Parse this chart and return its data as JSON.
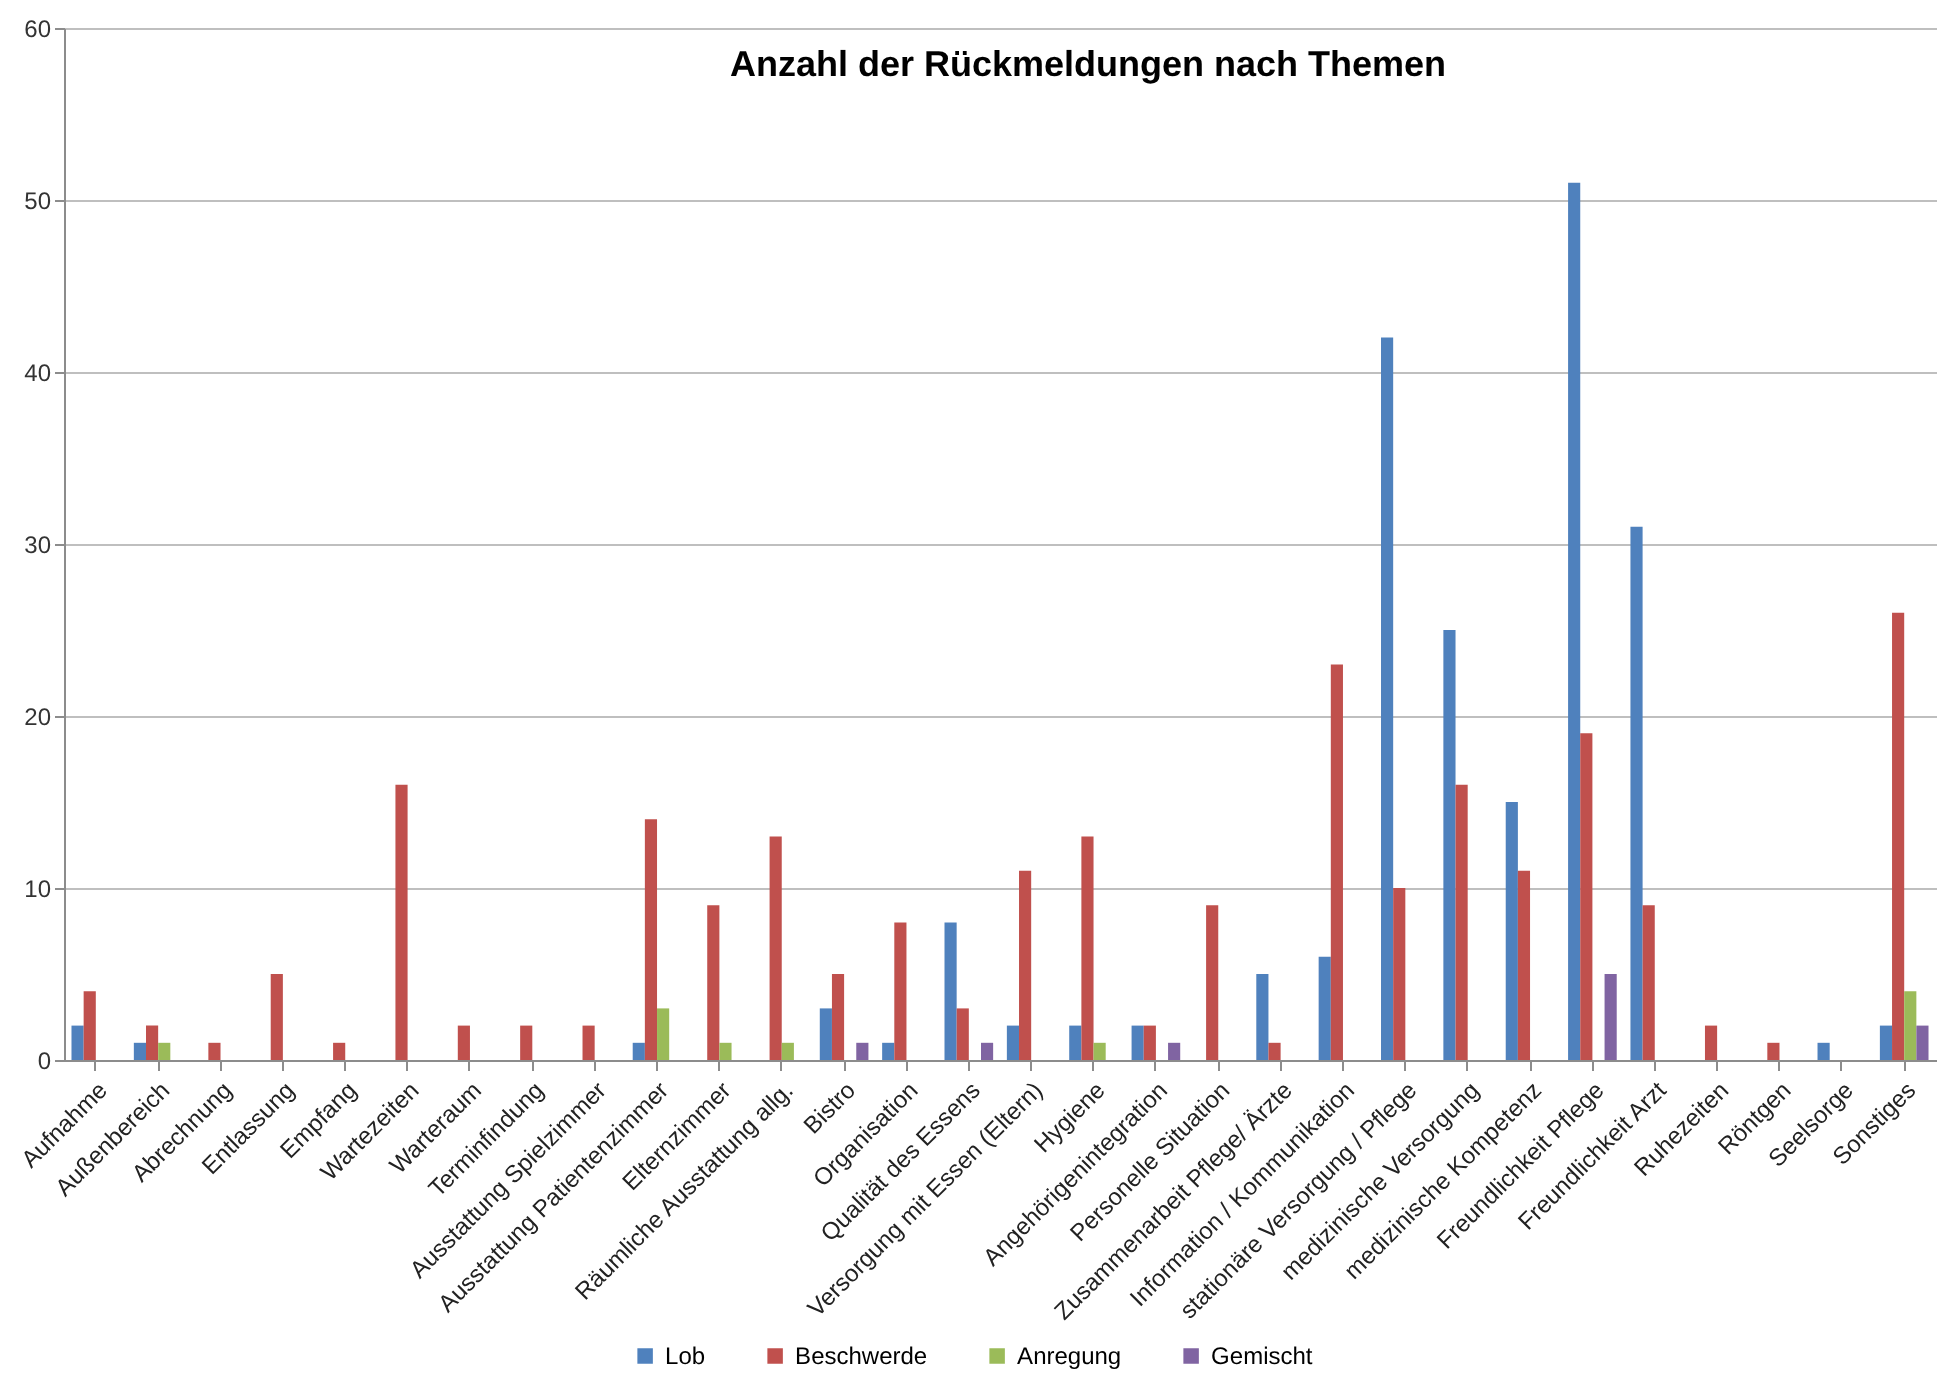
{
  "chart_data": {
    "type": "bar",
    "title": "Anzahl der Rückmeldungen nach Themen",
    "categories": [
      "Aufnahme",
      "Außenbereich",
      "Abrechnung",
      "Entlassung",
      "Empfang",
      "Wartezeiten",
      "Warteraum",
      "Terminfindung",
      "Ausstattung Spielzimmer",
      "Ausstattung Patientenzimmer",
      "Elternzimmer",
      "Räumliche Ausstattung allg.",
      "Bistro",
      "Organisation",
      "Qualität des Essens",
      "Versorgung mit Essen (Eltern)",
      "Hygiene",
      "Angehörigenintegration",
      "Personelle Situation",
      "Zusammenarbeit Pflege/ Ärzte",
      "Information / Kommunikation",
      "stationäre Versorgung / Pflege",
      "medizinische Versorgung",
      "medizinische Kompetenz",
      "Freundlichkeit Pflege",
      "Freundlichkeit Arzt",
      "Ruhezeiten",
      "Röntgen",
      "Seelsorge",
      "Sonstiges"
    ],
    "series": [
      {
        "name": "Lob",
        "color": "#4f81bd",
        "values": [
          2,
          1,
          null,
          null,
          null,
          null,
          null,
          null,
          null,
          1,
          null,
          null,
          3,
          1,
          8,
          2,
          2,
          2,
          null,
          5,
          6,
          42,
          25,
          15,
          51,
          31,
          null,
          null,
          1,
          2
        ]
      },
      {
        "name": "Beschwerde",
        "color": "#c0504d",
        "values": [
          4,
          2,
          1,
          5,
          1,
          16,
          2,
          2,
          2,
          14,
          9,
          13,
          5,
          8,
          3,
          11,
          13,
          2,
          9,
          1,
          23,
          10,
          16,
          11,
          19,
          9,
          2,
          1,
          null,
          26
        ]
      },
      {
        "name": "Anregung",
        "color": "#9bbb59",
        "values": [
          null,
          1,
          null,
          null,
          null,
          null,
          null,
          null,
          null,
          3,
          1,
          1,
          null,
          null,
          null,
          null,
          1,
          null,
          null,
          null,
          null,
          null,
          null,
          null,
          null,
          null,
          null,
          null,
          null,
          4
        ]
      },
      {
        "name": "Gemischt",
        "color": "#8064a2",
        "values": [
          null,
          null,
          null,
          null,
          null,
          null,
          null,
          null,
          null,
          null,
          null,
          null,
          1,
          null,
          1,
          null,
          null,
          1,
          null,
          null,
          null,
          null,
          null,
          null,
          5,
          null,
          null,
          null,
          null,
          2
        ]
      }
    ],
    "ylim": [
      0,
      60
    ],
    "yticks": [
      0,
      10,
      20,
      30,
      40,
      50,
      60
    ],
    "grid": "y",
    "legend": "bottom"
  }
}
